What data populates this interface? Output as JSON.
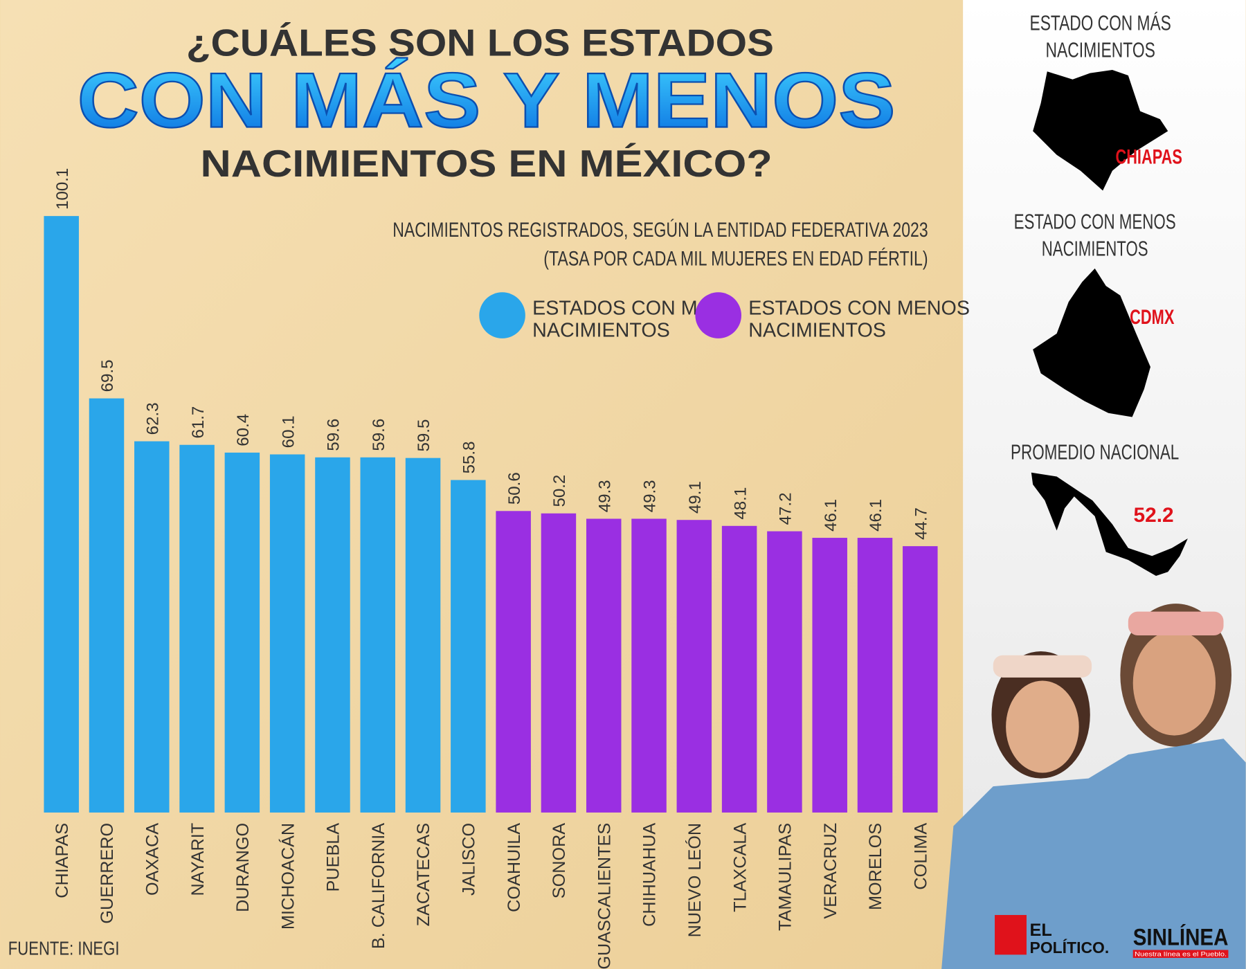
{
  "chart_data": {
    "type": "bar",
    "title": [
      "¿CUÁLES SON LOS ESTADOS",
      "CON MÁS Y MENOS",
      "NACIMIENTOS EN MÉXICO?"
    ],
    "subtitle": [
      "NACIMIENTOS REGISTRADOS, SEGÚN LA ENTIDAD FEDERATIVA 2023",
      "(TASA POR CADA MIL MUJERES EN EDAD FÉRTIL)"
    ],
    "categories": [
      "CHIAPAS",
      "GUERRERO",
      "OAXACA",
      "NAYARIT",
      "DURANGO",
      "MICHOACÁN",
      "PUEBLA",
      "B. CALIFORNIA",
      "ZACATECAS",
      "JALISCO",
      "COAHUILA",
      "SONORA",
      "AGUASCALIENTES",
      "CHIHUAHUA",
      "NUEVO LEÓN",
      "TLAXCALA",
      "TAMAULIPAS",
      "VERACRUZ",
      "MORELOS",
      "COLIMA"
    ],
    "series": [
      {
        "name": [
          "ESTADOS CON MÁS",
          "NACIMIENTOS"
        ],
        "color": "#2aa6ea",
        "values": [
          100.1,
          69.5,
          62.3,
          61.7,
          60.4,
          60.1,
          59.6,
          59.6,
          59.5,
          55.8,
          null,
          null,
          null,
          null,
          null,
          null,
          null,
          null,
          null,
          null
        ]
      },
      {
        "name": [
          "ESTADOS CON MENOS",
          "NACIMIENTOS"
        ],
        "color": "#9a2fe2",
        "values": [
          null,
          null,
          null,
          null,
          null,
          null,
          null,
          null,
          null,
          null,
          50.6,
          50.2,
          49.3,
          49.3,
          49.1,
          48.1,
          47.2,
          46.1,
          46.1,
          44.7
        ]
      }
    ],
    "legend": "top-right",
    "source": "FUENTE: INEGI"
  },
  "sidebar": {
    "most": {
      "title": [
        "ESTADO CON MÁS",
        "NACIMIENTOS"
      ],
      "state": "CHIAPAS"
    },
    "least": {
      "title": [
        "ESTADO CON MENOS",
        "NACIMIENTOS"
      ],
      "state": "CDMX"
    },
    "average": {
      "title": "PROMEDIO NACIONAL",
      "value": 52.2
    }
  },
  "logos": {
    "el_politico": [
      "EL",
      "POLÍTICO."
    ],
    "sinlinea": {
      "name": "SINLÍNEA",
      "tagline": "Nuestra línea es el Pueblo."
    }
  }
}
